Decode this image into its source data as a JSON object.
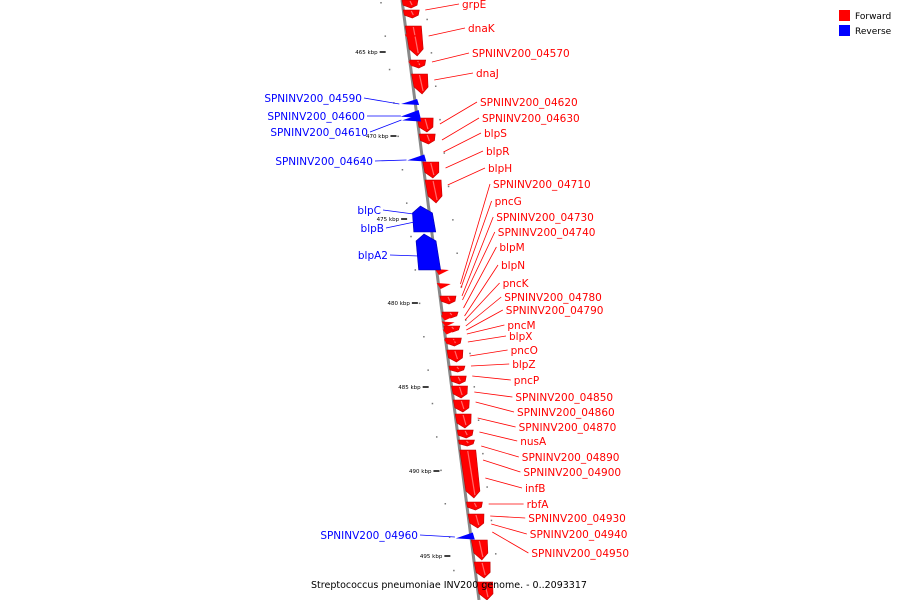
{
  "caption": "Streptococcus pneumoniae INV200 genome. - 0..2093317",
  "colors": {
    "forward": "#ff0000",
    "reverse": "#0000ff",
    "backbone": "#888888"
  },
  "legend": [
    {
      "label": "Forward",
      "color": "#ff0000"
    },
    {
      "label": "Reverse",
      "color": "#0000ff"
    }
  ],
  "ticks": [
    {
      "label": "465 kbp",
      "kb": 465
    },
    {
      "label": "470 kbp",
      "kb": 470
    },
    {
      "label": "475 kbp",
      "kb": 475
    },
    {
      "label": "480 kbp",
      "kb": 480
    },
    {
      "label": "485 kbp",
      "kb": 485
    },
    {
      "label": "490 kbp",
      "kb": 490
    },
    {
      "label": "495 kbp",
      "kb": 495
    }
  ],
  "forward_labels": [
    "grpE",
    "dnaK",
    "SPNINV200_04570",
    "dnaJ",
    "SPNINV200_04620",
    "SPNINV200_04630",
    "blpS",
    "blpR",
    "blpH",
    "SPNINV200_04710",
    "pncG",
    "SPNINV200_04730",
    "SPNINV200_04740",
    "blpM",
    "blpN",
    "pncK",
    "SPNINV200_04780",
    "SPNINV200_04790",
    "pncM",
    "blpX",
    "pncO",
    "blpZ",
    "pncP",
    "SPNINV200_04850",
    "SPNINV200_04860",
    "SPNINV200_04870",
    "nusA",
    "SPNINV200_04890",
    "SPNINV200_04900",
    "infB",
    "rbfA",
    "SPNINV200_04930",
    "SPNINV200_04940",
    "SPNINV200_04950"
  ],
  "reverse_labels": [
    "SPNINV200_04590",
    "SPNINV200_04600",
    "SPNINV200_04610",
    "SPNINV200_04640",
    "blpC",
    "blpB",
    "blpA2",
    "SPNINV200_04960"
  ]
}
